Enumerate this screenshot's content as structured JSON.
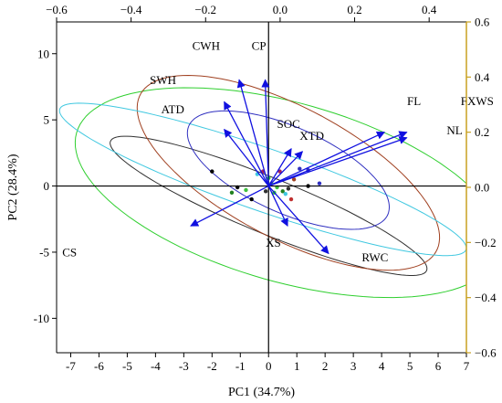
{
  "chart_data": {
    "type": "scatter",
    "xlabel": "PC1 (34.7%)",
    "ylabel": "PC2 (28.4%)",
    "xlim": [
      -7.5,
      7.0
    ],
    "ylim": [
      -12.6,
      12.4
    ],
    "top_xlim": [
      -0.6,
      0.5
    ],
    "right_ylim": [
      -0.6,
      0.6
    ],
    "xticks": [
      -7,
      -6,
      -5,
      -4,
      -3,
      -2,
      -1,
      0,
      1,
      2,
      3,
      4,
      5,
      6,
      7
    ],
    "yticks": [
      -10,
      -5,
      0,
      5,
      10
    ],
    "top_ticks": [
      -0.6,
      -0.4,
      -0.2,
      0.0,
      0.2,
      0.4
    ],
    "right_ticks": [
      -0.6,
      -0.4,
      -0.2,
      0.0,
      0.2,
      0.4,
      0.6
    ],
    "top_tick_labels": [
      "−0.6",
      "−0.4",
      "−0.2",
      "0.0",
      "0.2",
      "0.4"
    ],
    "right_tick_labels": [
      "−0.6",
      "−0.4",
      "−0.2",
      "0.0",
      "0.2",
      "0.4",
      "0.6"
    ],
    "frame_color": "#000000",
    "secondary_axis_color": "#c8a020",
    "vector_color": "#1010e0",
    "loadings": [
      {
        "name": "CWH",
        "x": -0.11,
        "y": 0.39
      },
      {
        "name": "CP",
        "x": -0.04,
        "y": 0.39
      },
      {
        "name": "SWH",
        "x": -0.15,
        "y": 0.31
      },
      {
        "name": "ATD",
        "x": -0.15,
        "y": 0.21
      },
      {
        "name": "SOC",
        "x": 0.03,
        "y": 0.14
      },
      {
        "name": "XTD",
        "x": 0.06,
        "y": 0.13
      },
      {
        "name": "FL",
        "x": 0.28,
        "y": 0.2
      },
      {
        "name": "FXWS",
        "x": 0.34,
        "y": 0.2
      },
      {
        "name": "NL",
        "x": 0.34,
        "y": 0.18
      },
      {
        "name": "XS",
        "x": 0.02,
        "y": -0.14
      },
      {
        "name": "RWC",
        "x": 0.13,
        "y": -0.24
      },
      {
        "name": "CS",
        "x": -0.24,
        "y": -0.14
      }
    ],
    "label_positions": {
      "CWH": [
        -2.7,
        10.3
      ],
      "CP": [
        -0.6,
        10.3
      ],
      "SWH": [
        -4.2,
        7.7
      ],
      "ATD": [
        -3.8,
        5.5
      ],
      "SOC": [
        0.3,
        4.4
      ],
      "XTD": [
        1.1,
        3.5
      ],
      "FL": [
        4.9,
        6.1
      ],
      "FXWS": [
        6.8,
        6.1
      ],
      "NL": [
        6.3,
        3.9
      ],
      "XS": [
        -0.1,
        -4.6
      ],
      "RWC": [
        3.3,
        -5.7
      ],
      "CS": [
        -7.3,
        -5.3
      ]
    },
    "ellipses": [
      {
        "color": "#303030",
        "cx": 0.0,
        "cy": -1.5,
        "a": 7.5,
        "b": 1.7,
        "angle_deg": -43
      },
      {
        "color": "#2fcf2f",
        "cx": 0.7,
        "cy": -0.5,
        "a": 9.4,
        "b": 5.6,
        "angle_deg": -48
      },
      {
        "color": "#a04020",
        "cx": 0.7,
        "cy": 1.0,
        "a": 8.4,
        "b": 3.5,
        "angle_deg": -58
      },
      {
        "color": "#40c8e0",
        "cx": -0.2,
        "cy": 0.5,
        "a": 9.0,
        "b": 2.0,
        "angle_deg": -38
      },
      {
        "color": "#3030c0",
        "cx": 0.7,
        "cy": 1.2,
        "a": 5.2,
        "b": 2.4,
        "angle_deg": -55
      }
    ],
    "points": [
      {
        "x": -2.0,
        "y": 1.1,
        "color": "#000000"
      },
      {
        "x": -1.1,
        "y": -0.1,
        "color": "#000000"
      },
      {
        "x": -1.3,
        "y": -0.5,
        "color": "#208020"
      },
      {
        "x": -0.8,
        "y": -0.3,
        "color": "#40c040"
      },
      {
        "x": -0.6,
        "y": -1.0,
        "color": "#000000"
      },
      {
        "x": -0.4,
        "y": 0.9,
        "color": "#40c8e0"
      },
      {
        "x": -0.2,
        "y": 1.1,
        "color": "#a02060"
      },
      {
        "x": 0.1,
        "y": 0.2,
        "color": "#40c040"
      },
      {
        "x": 0.2,
        "y": -0.5,
        "color": "#2fcf2f"
      },
      {
        "x": 0.4,
        "y": 1.1,
        "color": "#a02060"
      },
      {
        "x": 0.5,
        "y": -0.4,
        "color": "#208020"
      },
      {
        "x": 0.6,
        "y": -0.6,
        "color": "#40c8e0"
      },
      {
        "x": 0.7,
        "y": -0.2,
        "color": "#303030"
      },
      {
        "x": 0.8,
        "y": -1.0,
        "color": "#c03030"
      },
      {
        "x": 0.9,
        "y": 0.5,
        "color": "#a04020"
      },
      {
        "x": 1.1,
        "y": 1.3,
        "color": "#3030c0"
      },
      {
        "x": 1.4,
        "y": 1.2,
        "color": "#3030c0"
      },
      {
        "x": 1.4,
        "y": 0.0,
        "color": "#000000"
      },
      {
        "x": 1.8,
        "y": 0.2,
        "color": "#3030c0"
      },
      {
        "x": 0.3,
        "y": -0.1,
        "color": "#40c040"
      },
      {
        "x": -0.1,
        "y": -0.4,
        "color": "#303030"
      },
      {
        "x": 0.0,
        "y": 0.6,
        "color": "#2fcf2f"
      }
    ]
  }
}
